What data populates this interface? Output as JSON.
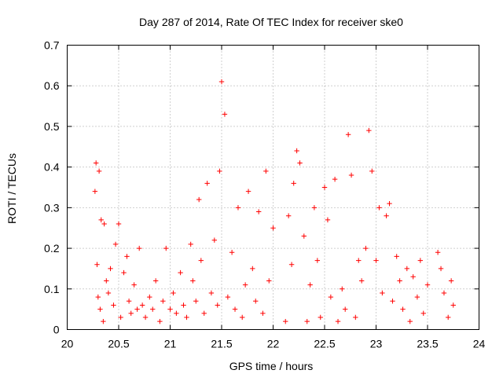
{
  "chart_data": {
    "type": "scatter",
    "title": "Day 287 of 2014, Rate Of TEC Index for receiver ske0",
    "xlabel": "GPS time / hours",
    "ylabel": "ROTI / TECUs",
    "xlim": [
      20,
      24
    ],
    "ylim": [
      0,
      0.7
    ],
    "grid": true,
    "marker": "+",
    "color": "#ff0000",
    "x_ticks": [
      20,
      20.5,
      21,
      21.5,
      22,
      22.5,
      23,
      23.5,
      24
    ],
    "x_tick_labels": [
      "20",
      "20.5",
      "21",
      "21.5",
      "22",
      "22.5",
      "23",
      "23.5",
      "24"
    ],
    "y_ticks": [
      0,
      0.1,
      0.2,
      0.3,
      0.4,
      0.5,
      0.6,
      0.7
    ],
    "y_tick_labels": [
      "0",
      "0.1",
      "0.2",
      "0.3",
      "0.4",
      "0.5",
      "0.6",
      "0.7"
    ],
    "series": [
      {
        "name": "ROTI",
        "x": [
          20.27,
          20.28,
          20.29,
          20.3,
          20.31,
          20.32,
          20.33,
          20.35,
          20.36,
          20.38,
          20.4,
          20.42,
          20.45,
          20.47,
          20.5,
          20.52,
          20.55,
          20.58,
          20.6,
          20.62,
          20.65,
          20.68,
          20.7,
          20.73,
          20.76,
          20.8,
          20.83,
          20.86,
          20.9,
          20.93,
          20.96,
          21.0,
          21.03,
          21.06,
          21.1,
          21.13,
          21.16,
          21.2,
          21.22,
          21.25,
          21.28,
          21.3,
          21.33,
          21.36,
          21.4,
          21.43,
          21.46,
          21.48,
          21.5,
          21.53,
          21.56,
          21.6,
          21.63,
          21.66,
          21.7,
          21.73,
          21.76,
          21.8,
          21.83,
          21.86,
          21.9,
          21.93,
          21.96,
          22.0,
          22.12,
          22.15,
          22.18,
          22.2,
          22.23,
          22.26,
          22.3,
          22.33,
          22.36,
          22.4,
          22.43,
          22.46,
          22.5,
          22.53,
          22.56,
          22.6,
          22.63,
          22.67,
          22.7,
          22.73,
          22.76,
          22.8,
          22.83,
          22.86,
          22.9,
          22.93,
          22.96,
          23.0,
          23.03,
          23.06,
          23.1,
          23.13,
          23.16,
          23.2,
          23.23,
          23.26,
          23.3,
          23.33,
          23.36,
          23.4,
          23.43,
          23.46,
          23.5,
          23.6,
          23.63,
          23.66,
          23.7,
          23.73,
          23.75
        ],
        "y": [
          0.34,
          0.41,
          0.16,
          0.08,
          0.39,
          0.05,
          0.27,
          0.02,
          0.26,
          0.12,
          0.09,
          0.15,
          0.06,
          0.21,
          0.26,
          0.03,
          0.14,
          0.18,
          0.07,
          0.04,
          0.11,
          0.05,
          0.2,
          0.06,
          0.03,
          0.08,
          0.05,
          0.12,
          0.02,
          0.07,
          0.2,
          0.05,
          0.09,
          0.04,
          0.14,
          0.06,
          0.03,
          0.21,
          0.12,
          0.07,
          0.32,
          0.17,
          0.04,
          0.36,
          0.09,
          0.22,
          0.06,
          0.39,
          0.61,
          0.53,
          0.08,
          0.19,
          0.05,
          0.3,
          0.03,
          0.11,
          0.34,
          0.15,
          0.07,
          0.29,
          0.04,
          0.39,
          0.12,
          0.25,
          0.02,
          0.28,
          0.16,
          0.36,
          0.44,
          0.41,
          0.23,
          0.02,
          0.11,
          0.3,
          0.17,
          0.03,
          0.35,
          0.27,
          0.08,
          0.37,
          0.02,
          0.1,
          0.05,
          0.48,
          0.38,
          0.03,
          0.17,
          0.12,
          0.2,
          0.49,
          0.39,
          0.17,
          0.3,
          0.09,
          0.28,
          0.31,
          0.07,
          0.18,
          0.12,
          0.05,
          0.15,
          0.02,
          0.13,
          0.08,
          0.17,
          0.04,
          0.11,
          0.19,
          0.15,
          0.09,
          0.03,
          0.12,
          0.06
        ]
      }
    ]
  }
}
